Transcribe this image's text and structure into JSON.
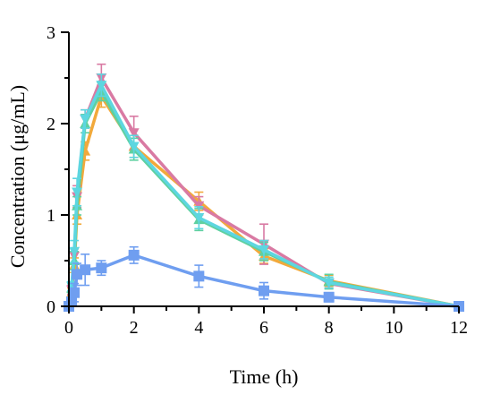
{
  "chart_data": {
    "type": "line",
    "title": "",
    "xlabel": "Time (h)",
    "ylabel": "Concentration (μg/mL)",
    "xlim": [
      0,
      12
    ],
    "ylim": [
      0,
      3
    ],
    "xticks": [
      0,
      2,
      4,
      6,
      8,
      10,
      12
    ],
    "yticks": [
      0,
      1,
      2,
      3
    ],
    "x_minor_step": 1,
    "y_minor_step": 0.5,
    "grid": false,
    "legend": "none",
    "series": [
      {
        "color": "#f2a93b",
        "marker": "triangle-up",
        "x": [
          0,
          0.083,
          0.167,
          0.25,
          0.5,
          1,
          2,
          4,
          6,
          8,
          12
        ],
        "y": [
          0,
          0.15,
          0.45,
          1.0,
          1.7,
          2.3,
          1.75,
          1.15,
          0.55,
          0.28,
          0
        ],
        "err": [
          0,
          0.05,
          0.08,
          0.1,
          0.1,
          0.12,
          0.12,
          0.1,
          0.08,
          0.06,
          0
        ]
      },
      {
        "color": "#d97aa3",
        "marker": "triangle-down",
        "x": [
          0,
          0.083,
          0.167,
          0.25,
          0.5,
          1,
          2,
          4,
          6,
          8,
          12
        ],
        "y": [
          0,
          0.18,
          0.55,
          1.2,
          2.05,
          2.5,
          1.9,
          1.1,
          0.68,
          0.25,
          0
        ],
        "err": [
          0,
          0.05,
          0.08,
          0.12,
          0.1,
          0.15,
          0.18,
          0.1,
          0.22,
          0.05,
          0
        ]
      },
      {
        "color": "#5ed0a0",
        "marker": "triangle-up",
        "x": [
          0,
          0.083,
          0.167,
          0.25,
          0.5,
          1,
          2,
          4,
          6,
          8,
          12
        ],
        "y": [
          0,
          0.2,
          0.5,
          1.1,
          2.0,
          2.35,
          1.72,
          0.95,
          0.6,
          0.27,
          0
        ],
        "err": [
          0,
          0.05,
          0.1,
          0.1,
          0.1,
          0.1,
          0.12,
          0.12,
          0.1,
          0.08,
          0
        ]
      },
      {
        "color": "#5dd6e0",
        "marker": "triangle-down",
        "x": [
          0,
          0.083,
          0.167,
          0.25,
          0.5,
          1,
          2,
          4,
          6,
          8,
          12
        ],
        "y": [
          0,
          0.22,
          0.6,
          1.25,
          2.05,
          2.42,
          1.75,
          0.97,
          0.62,
          0.26,
          0
        ],
        "err": [
          0,
          0.05,
          0.12,
          0.15,
          0.1,
          0.12,
          0.12,
          0.12,
          0.1,
          0.06,
          0
        ]
      },
      {
        "color": "#6f9ef0",
        "marker": "square",
        "x": [
          0,
          0.083,
          0.167,
          0.25,
          0.5,
          1,
          2,
          4,
          6,
          8,
          12
        ],
        "y": [
          0,
          0.05,
          0.15,
          0.35,
          0.4,
          0.42,
          0.56,
          0.33,
          0.17,
          0.1,
          0
        ],
        "err": [
          0,
          0.03,
          0.1,
          0.12,
          0.17,
          0.08,
          0.09,
          0.12,
          0.09,
          0.05,
          0
        ]
      }
    ]
  }
}
